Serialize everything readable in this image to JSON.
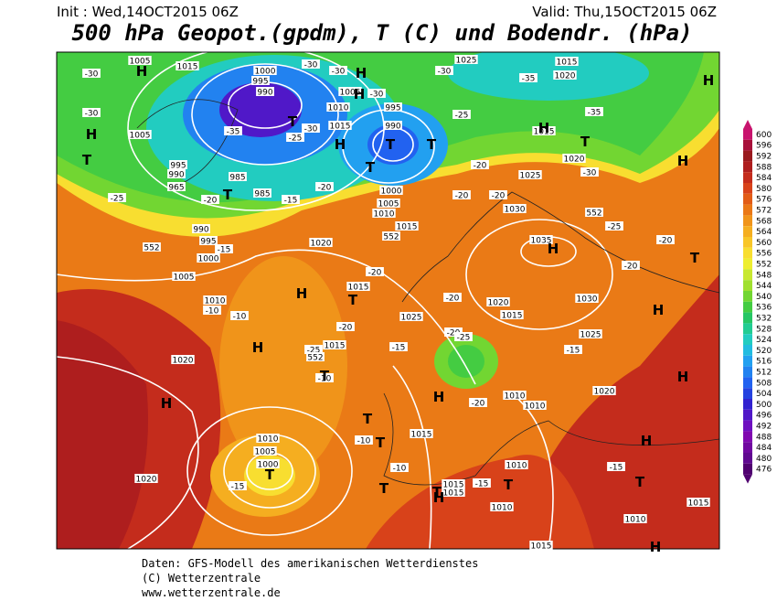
{
  "header": {
    "init": "Init : Wed,14OCT2015 06Z",
    "valid": "Valid: Thu,15OCT2015 06Z",
    "title": "500 hPa Geopot.(gpdm), T (C) und Bodendr. (hPa)"
  },
  "legend": {
    "values": [
      600,
      596,
      592,
      588,
      584,
      580,
      576,
      572,
      568,
      564,
      560,
      556,
      552,
      548,
      544,
      540,
      536,
      532,
      528,
      524,
      520,
      516,
      512,
      508,
      504,
      500,
      496,
      492,
      488,
      484,
      480,
      476
    ],
    "colors": [
      "#c8146e",
      "#a8103a",
      "#9a1a1e",
      "#ae1e1e",
      "#c42c1c",
      "#d8421a",
      "#e25c16",
      "#ea7816",
      "#f0941a",
      "#f5ae20",
      "#f8c628",
      "#f8de30",
      "#eeee30",
      "#c8e830",
      "#a0e030",
      "#72d632",
      "#44cc42",
      "#26c664",
      "#22cc92",
      "#22ccc0",
      "#22bce0",
      "#22a0f0",
      "#2282f0",
      "#2262f0",
      "#2442e0",
      "#3222d0",
      "#5018c8",
      "#6e10c0",
      "#8008b0",
      "#7008a0",
      "#600890",
      "#500070"
    ]
  },
  "map_labels": [
    "1005",
    "1015",
    "1000",
    "995",
    "990",
    "-30",
    "-30",
    "1005",
    "-30",
    "1010",
    "995",
    "1015",
    "990",
    "-25",
    "1025",
    "1015",
    "1020",
    "-30",
    "-35",
    "-35",
    "1015",
    "-30",
    "-30",
    "1005",
    "-35",
    "-30",
    "-25",
    "995",
    "990",
    "965",
    "985",
    "-20",
    "985",
    "-15",
    "-20",
    "1000",
    "-20",
    "-20",
    "1025",
    "1020",
    "-30",
    "-25",
    "1005",
    "1010",
    "1015",
    "1030",
    "-20",
    "990",
    "995",
    "-15",
    "1000",
    "552",
    "552",
    "552",
    "-25",
    "1020",
    "1035",
    "-20",
    "-20",
    "1005",
    "-20",
    "1015",
    "-20",
    "1020",
    "1030",
    "1010",
    "-10",
    "-10",
    "1025",
    "1015",
    "-20",
    "-15",
    "1015",
    "-25",
    "-20",
    "-25",
    "1025",
    "-15",
    "1020",
    "552",
    "-10",
    "1020",
    "1010",
    "-20",
    "1010",
    "1015",
    "-10",
    "1010",
    "1005",
    "1000",
    "-15",
    "1020",
    "-10",
    "1010",
    "-15",
    "1015",
    "1015",
    "1010",
    "1010",
    "1015",
    "-15",
    "1015",
    "H",
    "H",
    "H",
    "T",
    "H",
    "T",
    "T",
    "H",
    "T",
    "H",
    "T",
    "H",
    "H",
    "T",
    "T",
    "H",
    "T",
    "H",
    "T",
    "H",
    "H",
    "T",
    "H",
    "H",
    "T",
    "T",
    "H",
    "T",
    "T",
    "T",
    "H",
    "T",
    "H",
    "T",
    "H"
  ],
  "footer": [
    "Daten: GFS-Modell des amerikanischen Wetterdienstes",
    "(C) Wetterzentrale",
    "www.wetterzentrale.de"
  ]
}
